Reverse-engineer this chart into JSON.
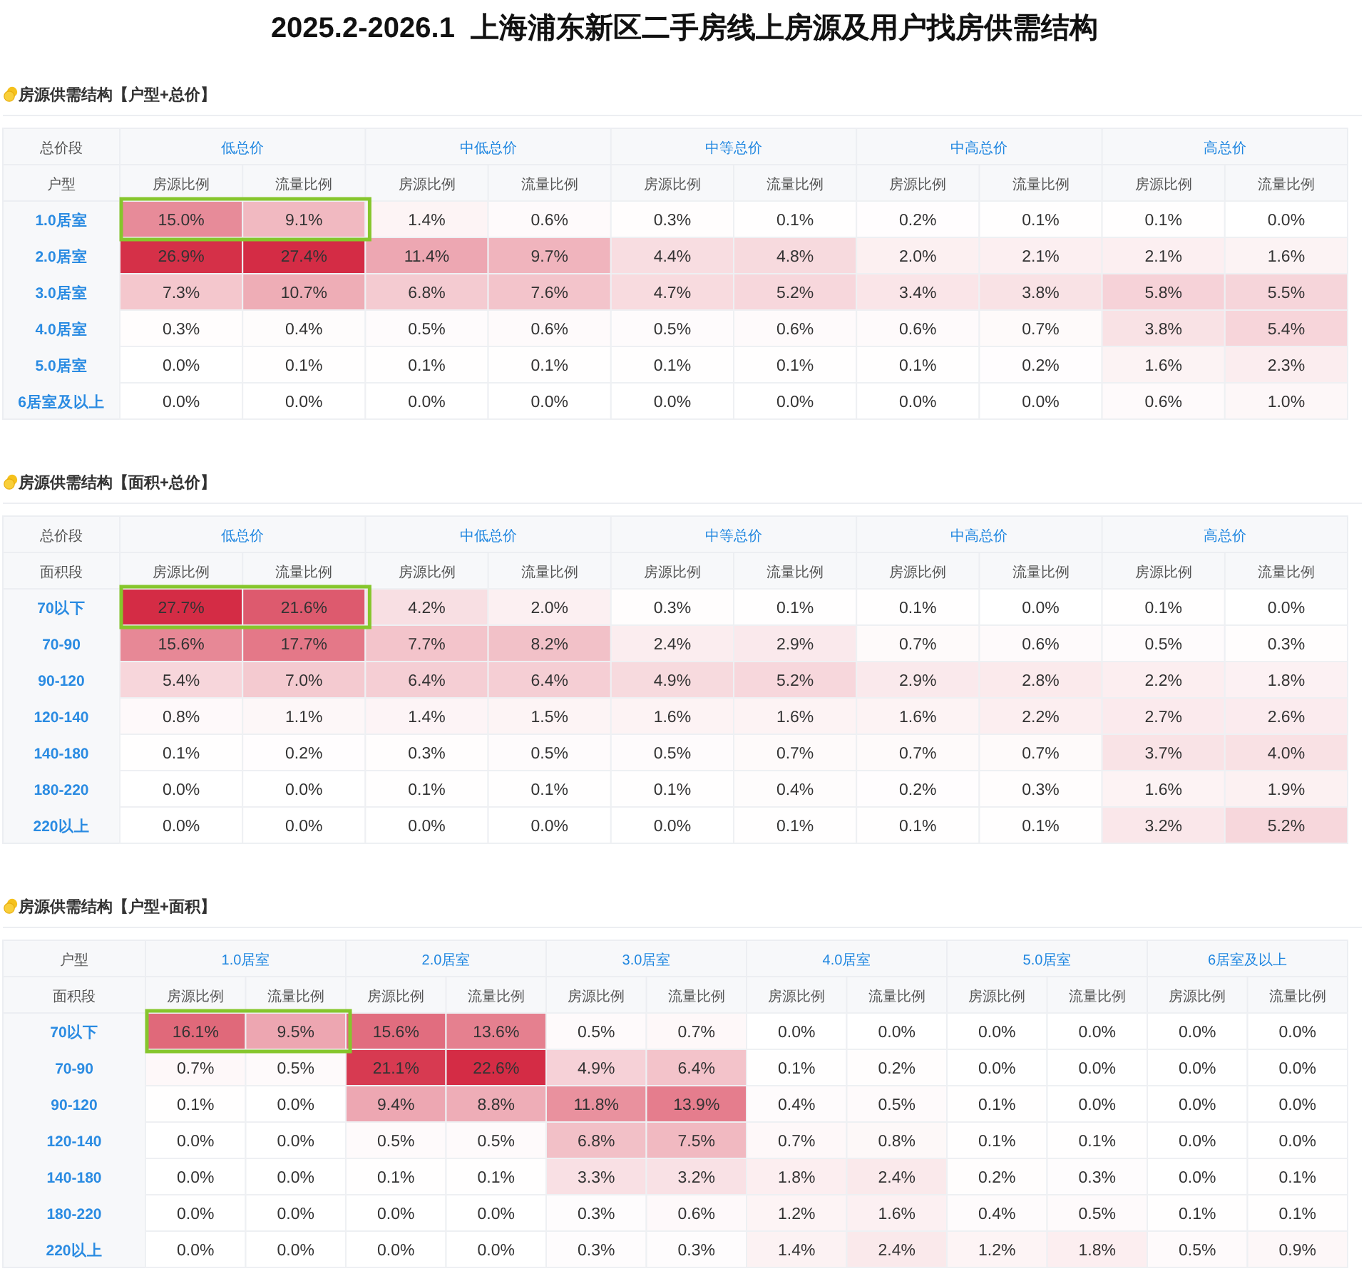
{
  "chart_data": [
    {
      "type": "heatmap",
      "title": "2025.2-2026.1  上海浦东新区二手房线上房源及用户找房供需结构",
      "subtitle": "房源供需结构【户型+总价】",
      "xlabel": "总价段",
      "ylabel": "户型",
      "annotations": [
        "低总价",
        "中低总价",
        "中等总价",
        "中高总价",
        "高总价"
      ],
      "color": "#d42c45",
      "categories": [
        "房源比例",
        "流量比例",
        "房源比例",
        "流量比例",
        "房源比例",
        "流量比例",
        "房源比例",
        "流量比例",
        "房源比例",
        "流量比例"
      ],
      "y_categories": [
        "1.0居室",
        "2.0居室",
        "3.0居室",
        "4.0居室",
        "5.0居室",
        "6居室及以上"
      ],
      "cells": [
        [
          15.0,
          9.1,
          1.4,
          0.6,
          0.3,
          0.1,
          0.2,
          0.1,
          0.1,
          0.0
        ],
        [
          26.9,
          27.4,
          11.4,
          9.7,
          4.4,
          4.8,
          2.0,
          2.1,
          2.1,
          1.6
        ],
        [
          7.3,
          10.7,
          6.8,
          7.6,
          4.7,
          5.2,
          3.4,
          3.8,
          5.8,
          5.5
        ],
        [
          0.3,
          0.4,
          0.5,
          0.6,
          0.5,
          0.6,
          0.6,
          0.7,
          3.8,
          5.4
        ],
        [
          0.0,
          0.1,
          0.1,
          0.1,
          0.1,
          0.1,
          0.1,
          0.2,
          1.6,
          2.3
        ],
        [
          0.0,
          0.0,
          0.0,
          0.0,
          0.0,
          0.0,
          0.0,
          0.0,
          0.6,
          1.0
        ]
      ],
      "cell_labels": [
        [
          "15.0%",
          "9.1%",
          "1.4%",
          "0.6%",
          "0.3%",
          "0.1%",
          "0.2%",
          "0.1%",
          "0.1%",
          "0.0%"
        ],
        [
          "26.9%",
          "27.4%",
          "11.4%",
          "9.7%",
          "4.4%",
          "4.8%",
          "2.0%",
          "2.1%",
          "2.1%",
          "1.6%"
        ],
        [
          "7.3%",
          "10.7%",
          "6.8%",
          "7.6%",
          "4.7%",
          "5.2%",
          "3.4%",
          "3.8%",
          "5.8%",
          "5.5%"
        ],
        [
          "0.3%",
          "0.4%",
          "0.5%",
          "0.6%",
          "0.5%",
          "0.6%",
          "0.6%",
          "0.7%",
          "3.8%",
          "5.4%"
        ],
        [
          "0.0%",
          "0.1%",
          "0.1%",
          "0.1%",
          "0.1%",
          "0.1%",
          "0.1%",
          "0.2%",
          "1.6%",
          "2.3%"
        ],
        [
          "0.0%",
          "0.0%",
          "0.0%",
          "0.0%",
          "0.0%",
          "0.0%",
          "0.0%",
          "0.0%",
          "0.6%",
          "1.0%"
        ]
      ]
    },
    {
      "type": "heatmap",
      "title": "房源供需结构【面积+总价】",
      "xlabel": "总价段",
      "ylabel": "面积段",
      "annotations": [
        "低总价",
        "中低总价",
        "中等总价",
        "中高总价",
        "高总价"
      ],
      "color": "#d42c45",
      "categories": [
        "房源比例",
        "流量比例",
        "房源比例",
        "流量比例",
        "房源比例",
        "流量比例",
        "房源比例",
        "流量比例",
        "房源比例",
        "流量比例"
      ],
      "y_categories": [
        "70以下",
        "70-90",
        "90-120",
        "120-140",
        "140-180",
        "180-220",
        "220以上"
      ],
      "cells": [
        [
          27.7,
          21.6,
          4.2,
          2.0,
          0.3,
          0.1,
          0.1,
          0.0,
          0.1,
          0.0
        ],
        [
          15.6,
          17.7,
          7.7,
          8.2,
          2.4,
          2.9,
          0.7,
          0.6,
          0.5,
          0.3
        ],
        [
          5.4,
          7.0,
          6.4,
          6.4,
          4.9,
          5.2,
          2.9,
          2.8,
          2.2,
          1.8
        ],
        [
          0.8,
          1.1,
          1.4,
          1.5,
          1.6,
          1.6,
          1.6,
          2.2,
          2.7,
          2.6
        ],
        [
          0.1,
          0.2,
          0.3,
          0.5,
          0.5,
          0.7,
          0.7,
          0.7,
          3.7,
          4.0
        ],
        [
          0.0,
          0.0,
          0.1,
          0.1,
          0.1,
          0.4,
          0.2,
          0.3,
          1.6,
          1.9
        ],
        [
          0.0,
          0.0,
          0.0,
          0.0,
          0.0,
          0.1,
          0.1,
          0.1,
          3.2,
          5.2
        ]
      ],
      "cell_labels": [
        [
          "27.7%",
          "21.6%",
          "4.2%",
          "2.0%",
          "0.3%",
          "0.1%",
          "0.1%",
          "0.0%",
          "0.1%",
          "0.0%"
        ],
        [
          "15.6%",
          "17.7%",
          "7.7%",
          "8.2%",
          "2.4%",
          "2.9%",
          "0.7%",
          "0.6%",
          "0.5%",
          "0.3%"
        ],
        [
          "5.4%",
          "7.0%",
          "6.4%",
          "6.4%",
          "4.9%",
          "5.2%",
          "2.9%",
          "2.8%",
          "2.2%",
          "1.8%"
        ],
        [
          "0.8%",
          "1.1%",
          "1.4%",
          "1.5%",
          "1.6%",
          "1.6%",
          "1.6%",
          "2.2%",
          "2.7%",
          "2.6%"
        ],
        [
          "0.1%",
          "0.2%",
          "0.3%",
          "0.5%",
          "0.5%",
          "0.7%",
          "0.7%",
          "0.7%",
          "3.7%",
          "4.0%"
        ],
        [
          "0.0%",
          "0.0%",
          "0.1%",
          "0.1%",
          "0.1%",
          "0.4%",
          "0.2%",
          "0.3%",
          "1.6%",
          "1.9%"
        ],
        [
          "0.0%",
          "0.0%",
          "0.0%",
          "0.0%",
          "0.0%",
          "0.1%",
          "0.1%",
          "0.1%",
          "3.2%",
          "5.2%"
        ]
      ]
    },
    {
      "type": "heatmap",
      "title": "房源供需结构【户型+面积】",
      "xlabel": "户型",
      "ylabel": "面积段",
      "annotations": [
        "1.0居室",
        "2.0居室",
        "3.0居室",
        "4.0居室",
        "5.0居室",
        "6居室及以上"
      ],
      "color": "#d42c45",
      "categories": [
        "房源比例",
        "流量比例",
        "房源比例",
        "流量比例",
        "房源比例",
        "流量比例",
        "房源比例",
        "流量比例",
        "房源比例",
        "流量比例",
        "房源比例",
        "流量比例"
      ],
      "y_categories": [
        "70以下",
        "70-90",
        "90-120",
        "120-140",
        "140-180",
        "180-220",
        "220以上"
      ],
      "cells": [
        [
          16.1,
          9.5,
          15.6,
          13.6,
          0.5,
          0.7,
          0.0,
          0.0,
          0.0,
          0.0,
          0.0,
          0.0
        ],
        [
          0.7,
          0.5,
          21.1,
          22.6,
          4.9,
          6.4,
          0.1,
          0.2,
          0.0,
          0.0,
          0.0,
          0.0
        ],
        [
          0.1,
          0.0,
          9.4,
          8.8,
          11.8,
          13.9,
          0.4,
          0.5,
          0.1,
          0.0,
          0.0,
          0.0
        ],
        [
          0.0,
          0.0,
          0.5,
          0.5,
          6.8,
          7.5,
          0.7,
          0.8,
          0.1,
          0.1,
          0.0,
          0.0
        ],
        [
          0.0,
          0.0,
          0.1,
          0.1,
          3.3,
          3.2,
          1.8,
          2.4,
          0.2,
          0.3,
          0.0,
          0.1
        ],
        [
          0.0,
          0.0,
          0.0,
          0.0,
          0.3,
          0.6,
          1.2,
          1.6,
          0.4,
          0.5,
          0.1,
          0.1
        ],
        [
          0.0,
          0.0,
          0.0,
          0.0,
          0.3,
          0.3,
          1.4,
          2.4,
          1.2,
          1.8,
          0.5,
          0.9
        ]
      ],
      "cell_labels": [
        [
          "16.1%",
          "9.5%",
          "15.6%",
          "13.6%",
          "0.5%",
          "0.7%",
          "0.0%",
          "0.0%",
          "0.0%",
          "0.0%",
          "0.0%",
          "0.0%"
        ],
        [
          "0.7%",
          "0.5%",
          "21.1%",
          "22.6%",
          "4.9%",
          "6.4%",
          "0.1%",
          "0.2%",
          "0.0%",
          "0.0%",
          "0.0%",
          "0.0%"
        ],
        [
          "0.1%",
          "0.0%",
          "9.4%",
          "8.8%",
          "11.8%",
          "13.9%",
          "0.4%",
          "0.5%",
          "0.1%",
          "0.0%",
          "0.0%",
          "0.0%"
        ],
        [
          "0.0%",
          "0.0%",
          "0.5%",
          "0.5%",
          "6.8%",
          "7.5%",
          "0.7%",
          "0.8%",
          "0.1%",
          "0.1%",
          "0.0%",
          "0.0%"
        ],
        [
          "0.0%",
          "0.0%",
          "0.1%",
          "0.1%",
          "3.3%",
          "3.2%",
          "1.8%",
          "2.4%",
          "0.2%",
          "0.3%",
          "0.0%",
          "0.1%"
        ],
        [
          "0.0%",
          "0.0%",
          "0.0%",
          "0.0%",
          "0.3%",
          "0.6%",
          "1.2%",
          "1.6%",
          "0.4%",
          "0.5%",
          "0.1%",
          "0.1%"
        ],
        [
          "0.0%",
          "0.0%",
          "0.0%",
          "0.0%",
          "0.3%",
          "0.3%",
          "1.4%",
          "2.4%",
          "1.2%",
          "1.8%",
          "0.5%",
          "0.9%"
        ]
      ]
    }
  ]
}
